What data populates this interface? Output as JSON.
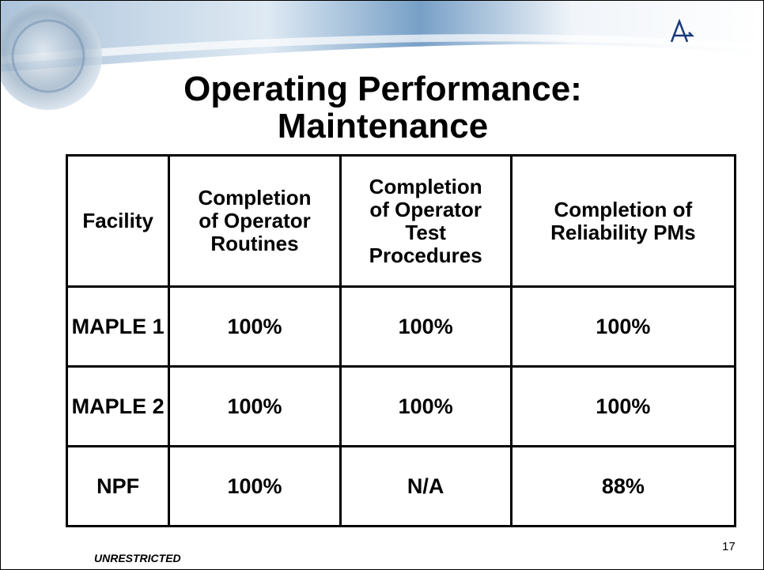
{
  "slide": {
    "title": "Operating Performance: Maintenance",
    "table": {
      "header": [
        "Facility",
        "Completion of Operator Routines",
        "Completion of Operator Test Procedures",
        "Completion of Reliability PMs"
      ],
      "rows": [
        [
          "MAPLE 1",
          "100%",
          "100%",
          "100%"
        ],
        [
          "MAPLE 2",
          "100%",
          "100%",
          "100%"
        ],
        [
          "NPF",
          "100%",
          "N/A",
          "88%"
        ]
      ]
    },
    "footer": "UNRESTRICTED",
    "page_number": "17"
  }
}
